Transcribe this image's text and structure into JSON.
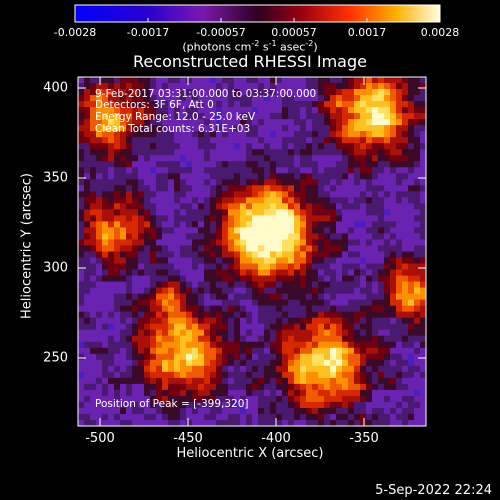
{
  "colorbar": {
    "ticks": [
      "-0.0028",
      "-0.0017",
      "-0.00057",
      "0.00057",
      "0.0017",
      "0.0028"
    ],
    "units_main": "(photons cm",
    "units_sup1": "-2",
    "units_mid1": " s",
    "units_sup2": "-1",
    "units_mid2": " asec",
    "units_sup3": "-2",
    "units_end": ")"
  },
  "title": "Reconstructed RHESSI Image",
  "info": {
    "time": "9-Feb-2017 03:31:00.000 to 03:37:00.000",
    "detectors": "Detectors: 3F 6F, Att 0",
    "energy": "Energy Range: 12.0 - 25.0 keV",
    "clean": "Clean     Total counts: 6.31E+03"
  },
  "peak": "Position of Peak = [-399,320]",
  "axes": {
    "xlabel": "Heliocentric X (arcsec)",
    "ylabel": "Heliocentric Y (arcsec)",
    "xticks": [
      "-500",
      "-450",
      "-400",
      "-350"
    ],
    "yticks": [
      "400",
      "350",
      "300",
      "250"
    ],
    "xlim": [
      -513,
      -318
    ],
    "ylim": [
      213,
      408
    ]
  },
  "footer": "5-Sep-2022 22:24",
  "colors": {
    "foreground": "#ffffff",
    "background": "#000000"
  }
}
